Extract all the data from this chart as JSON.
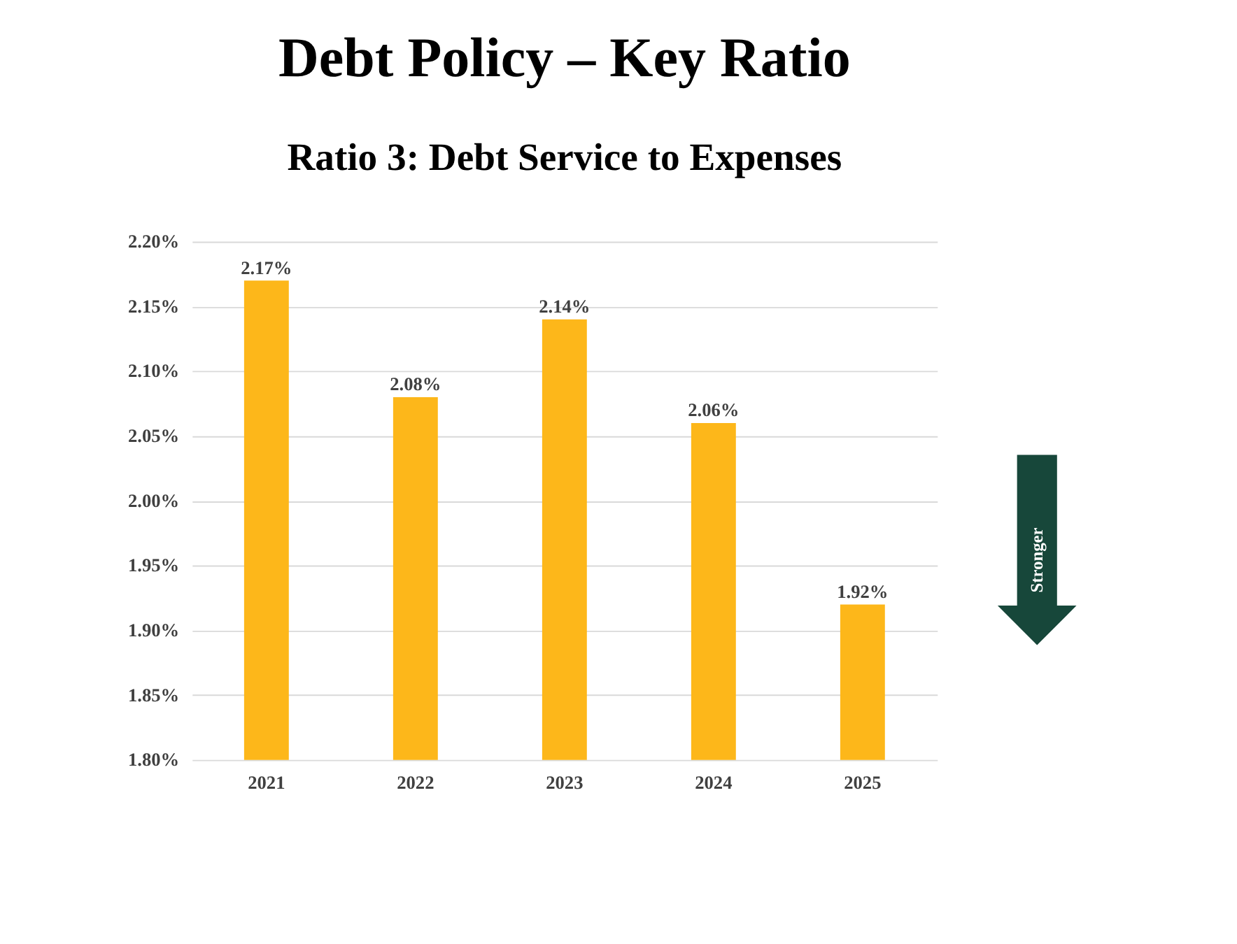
{
  "chart_data": {
    "type": "bar",
    "title": "Debt Policy – Key Ratio",
    "subtitle": "Ratio 3: Debt Service to Expenses",
    "categories": [
      "2021",
      "2022",
      "2023",
      "2024",
      "2025"
    ],
    "series": [
      {
        "color": "#fdb71a",
        "values": [
          2.17,
          2.08,
          2.14,
          2.06,
          1.92
        ],
        "value_labels": [
          "2.17%",
          "2.08%",
          "2.14%",
          "2.06%",
          "1.92%"
        ]
      }
    ],
    "ylim": [
      1.8,
      2.2
    ],
    "yticks": [
      {
        "value": 1.8,
        "label": "1.80%"
      },
      {
        "value": 1.85,
        "label": "1.85%"
      },
      {
        "value": 1.9,
        "label": "1.90%"
      },
      {
        "value": 1.95,
        "label": "1.95%"
      },
      {
        "value": 2.0,
        "label": "2.00%"
      },
      {
        "value": 2.05,
        "label": "2.05%"
      },
      {
        "value": 2.1,
        "label": "2.10%"
      },
      {
        "value": 2.15,
        "label": "2.15%"
      },
      {
        "value": 2.2,
        "label": "2.20%"
      }
    ],
    "grid": "y",
    "annotations": [
      "Stronger"
    ]
  }
}
